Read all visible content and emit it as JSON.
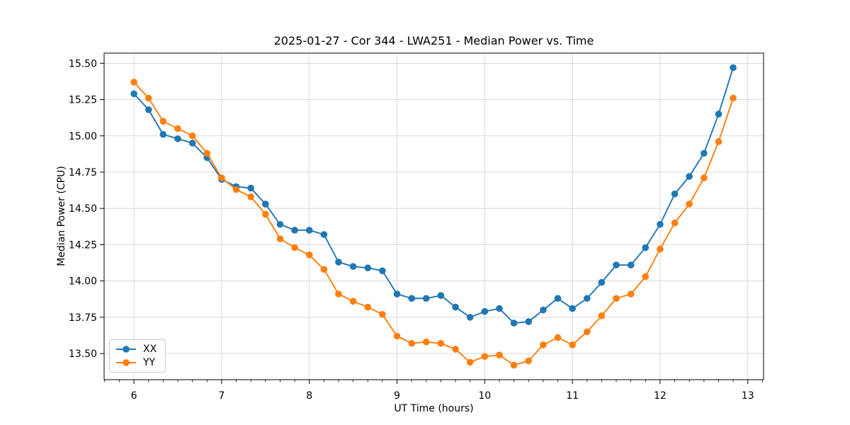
{
  "chart_data": {
    "type": "line",
    "title": "2025-01-27 - Cor 344 - LWA251 - Median Power vs. Time",
    "xlabel": "UT Time (hours)",
    "ylabel": "Median Power (CPU)",
    "xlim": [
      5.66,
      13.18
    ],
    "ylim": [
      13.32,
      15.57
    ],
    "xticks": [
      6,
      7,
      8,
      9,
      10,
      11,
      12,
      13
    ],
    "xtick_labels": [
      "6",
      "7",
      "8",
      "9",
      "10",
      "11",
      "12",
      "13"
    ],
    "yticks": [
      13.5,
      13.75,
      14.0,
      14.25,
      14.5,
      14.75,
      15.0,
      15.25,
      15.5
    ],
    "ytick_labels": [
      "13.50",
      "13.75",
      "14.00",
      "14.25",
      "14.50",
      "14.75",
      "15.00",
      "15.25",
      "15.50"
    ],
    "grid": true,
    "grid_color": "#d9d9d9",
    "legend_position": "lower-left",
    "x": [
      6.0,
      6.167,
      6.333,
      6.5,
      6.667,
      6.833,
      7.0,
      7.167,
      7.333,
      7.5,
      7.667,
      7.833,
      8.0,
      8.167,
      8.333,
      8.5,
      8.667,
      8.833,
      9.0,
      9.167,
      9.333,
      9.5,
      9.667,
      9.833,
      10.0,
      10.167,
      10.333,
      10.5,
      10.667,
      10.833,
      11.0,
      11.167,
      11.333,
      11.5,
      11.667,
      11.833,
      12.0,
      12.167,
      12.333,
      12.5,
      12.667,
      12.833
    ],
    "series": [
      {
        "name": "XX",
        "color": "#1f77b4",
        "values": [
          15.29,
          15.18,
          15.01,
          14.98,
          14.95,
          14.85,
          14.7,
          14.65,
          14.64,
          14.53,
          14.39,
          14.35,
          14.35,
          14.32,
          14.13,
          14.1,
          14.09,
          14.07,
          13.91,
          13.88,
          13.88,
          13.9,
          13.82,
          13.75,
          13.79,
          13.81,
          13.71,
          13.72,
          13.8,
          13.88,
          13.81,
          13.88,
          13.99,
          14.11,
          14.11,
          14.23,
          14.39,
          14.6,
          14.72,
          14.88,
          15.15,
          15.47
        ]
      },
      {
        "name": "YY",
        "color": "#ff7f0e",
        "values": [
          15.37,
          15.26,
          15.1,
          15.05,
          15.0,
          14.88,
          14.71,
          14.63,
          14.58,
          14.46,
          14.29,
          14.23,
          14.18,
          14.08,
          13.91,
          13.86,
          13.82,
          13.77,
          13.62,
          13.57,
          13.58,
          13.57,
          13.53,
          13.44,
          13.48,
          13.49,
          13.42,
          13.45,
          13.56,
          13.61,
          13.56,
          13.65,
          13.76,
          13.88,
          13.91,
          14.03,
          14.22,
          14.4,
          14.53,
          14.71,
          14.96,
          15.26
        ]
      }
    ]
  }
}
